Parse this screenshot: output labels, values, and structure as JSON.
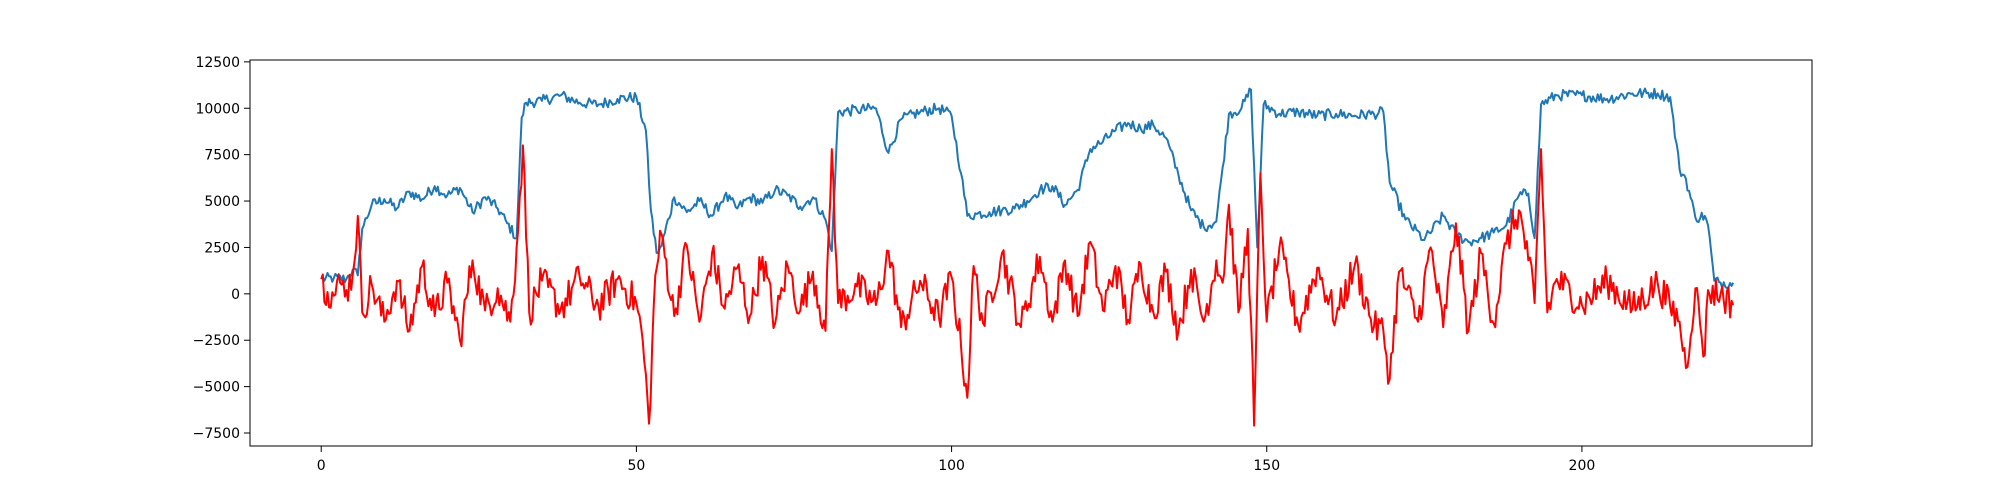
{
  "chart_data": {
    "type": "line",
    "title": "",
    "xlabel": "",
    "ylabel": "",
    "xlim": [
      -11.3,
      236.5
    ],
    "ylim": [
      -8200,
      12600
    ],
    "x_ticks": [
      0,
      50,
      100,
      150,
      200
    ],
    "y_ticks": [
      -7500,
      -5000,
      -2500,
      0,
      2500,
      5000,
      7500,
      10000,
      12500
    ],
    "x_tick_labels": [
      "0",
      "50",
      "100",
      "150",
      "200"
    ],
    "y_tick_labels": [
      "−7500",
      "−5000",
      "−2500",
      "0",
      "2500",
      "5000",
      "7500",
      "10000",
      "12500"
    ],
    "grid": false,
    "legend": "none",
    "series": [
      {
        "color": "#1f77b4",
        "x": [
          0,
          2,
          4,
          5,
          5.8,
          6.5,
          8,
          10,
          12,
          14,
          16,
          18,
          20,
          22,
          24,
          26,
          28,
          29.5,
          31,
          31.8,
          32.5,
          35,
          38,
          41,
          44,
          47,
          50,
          51.5,
          52.3,
          53.2,
          54,
          56,
          58,
          60,
          62,
          64,
          66,
          68,
          70,
          72,
          74,
          76,
          78,
          80,
          81,
          82,
          85,
          88,
          90,
          92,
          95,
          98,
          100,
          101.5,
          102.5,
          104,
          106,
          108,
          110,
          112,
          114,
          116,
          118,
          120,
          122,
          124,
          126,
          128,
          130,
          132,
          134,
          136,
          138,
          140,
          142,
          143,
          144,
          146,
          147.5,
          148.5,
          149.5,
          152,
          155,
          158,
          161,
          164,
          167,
          168.5,
          169.5,
          172,
          175,
          178,
          180,
          182,
          184,
          186,
          188,
          190,
          191.5,
          192.5,
          193.5,
          196,
          200,
          204,
          208,
          212,
          214,
          215.5,
          216.5,
          218,
          219.5,
          220,
          221,
          222,
          224
        ],
        "y": [
          800,
          850,
          800,
          1300,
          1000,
          3500,
          4800,
          5100,
          4600,
          5500,
          5100,
          5800,
          5300,
          5700,
          4400,
          5200,
          4600,
          3800,
          3000,
          9500,
          10300,
          10400,
          10700,
          10300,
          10200,
          10500,
          10600,
          8800,
          4500,
          2200,
          2600,
          5200,
          4400,
          5000,
          4200,
          5300,
          4600,
          5200,
          4900,
          5600,
          5300,
          4700,
          5200,
          4000,
          2300,
          9800,
          9900,
          10000,
          7600,
          9400,
          9800,
          10000,
          9600,
          6500,
          4200,
          4300,
          4400,
          4500,
          4600,
          5000,
          5600,
          5800,
          4800,
          5600,
          7800,
          8200,
          8800,
          9200,
          8900,
          9100,
          8400,
          6400,
          4500,
          3600,
          3900,
          6800,
          9700,
          10000,
          11000,
          2500,
          10200,
          9700,
          9800,
          9600,
          9700,
          9600,
          9700,
          9800,
          6000,
          4000,
          2900,
          4200,
          3200,
          2800,
          3000,
          3300,
          3700,
          5300,
          5400,
          3000,
          10200,
          10700,
          10700,
          10500,
          10800,
          10800,
          10600,
          6700,
          6200,
          4100,
          4200,
          3700,
          700,
          600,
          600
        ]
      },
      {
        "color": "#ff0000",
        "x": [
          0,
          1,
          2,
          3,
          4,
          5,
          5.8,
          6.5,
          8,
          10,
          12,
          14,
          16,
          18,
          20,
          22,
          24,
          26,
          28,
          30,
          31,
          32,
          33,
          35,
          38,
          41,
          44,
          47,
          50,
          51,
          52,
          53,
          54,
          56,
          58,
          60,
          62,
          64,
          66,
          68,
          70,
          72,
          74,
          76,
          78,
          80,
          81,
          82,
          85,
          88,
          90,
          92,
          95,
          98,
          100,
          101.5,
          102.5,
          103.5,
          105,
          108,
          111,
          114,
          116,
          118,
          120,
          122,
          124,
          126,
          128,
          130,
          132,
          134,
          136,
          138,
          140,
          142,
          143,
          144,
          145.5,
          147,
          148,
          149,
          150,
          152,
          155,
          158,
          161,
          164,
          167,
          168.5,
          169.5,
          171,
          174,
          176,
          178,
          180,
          182,
          184,
          186,
          188,
          190,
          191.5,
          192.5,
          193.5,
          194.5,
          196,
          200,
          204,
          208,
          212,
          214,
          215.5,
          216.5,
          218,
          219.5,
          220,
          222,
          224
        ],
        "y": [
          800,
          100,
          -100,
          600,
          200,
          1000,
          4200,
          -1000,
          500,
          -1500,
          700,
          -2000,
          1500,
          -1200,
          600,
          -2500,
          1800,
          -900,
          300,
          -1500,
          2500,
          8000,
          -1000,
          700,
          -800,
          900,
          -700,
          800,
          -500,
          -2500,
          -7000,
          1000,
          3200,
          -1200,
          2600,
          -1500,
          2200,
          -800,
          1400,
          -1200,
          2000,
          -1600,
          1500,
          -900,
          1200,
          -2000,
          7800,
          -500,
          400,
          -600,
          2300,
          -1800,
          700,
          -1300,
          900,
          -2800,
          -5600,
          1500,
          -1600,
          2200,
          -1800,
          2000,
          -1500,
          1800,
          -1200,
          2800,
          -900,
          1500,
          -1400,
          1600,
          -1000,
          1200,
          -2000,
          1300,
          -1500,
          1800,
          600,
          4800,
          -1000,
          3500,
          -7100,
          6500,
          -1500,
          2500,
          -1700,
          1400,
          -1300,
          1600,
          -1800,
          -2000,
          -4600,
          1200,
          -1500,
          2500,
          -1800,
          3800,
          -2000,
          2200,
          -1600,
          2700,
          4500,
          1800,
          -500,
          7800,
          -1000,
          800,
          -600,
          700,
          -800,
          600,
          -700,
          -1500,
          -4000,
          300,
          -3300,
          200,
          0,
          -600
        ]
      }
    ]
  }
}
